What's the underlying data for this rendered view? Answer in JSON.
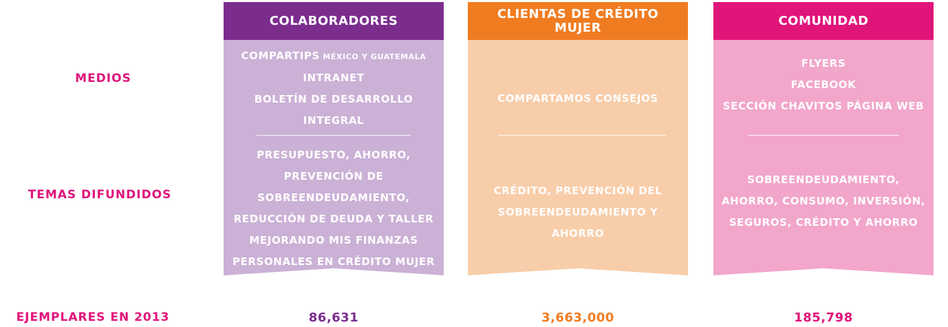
{
  "rows": {
    "medios": "MEDIOS",
    "temas": "TEMAS DIFUNDIDOS",
    "ejemplares": "EJEMPLARES EN 2013"
  },
  "columns": [
    {
      "header": "COLABORADORES",
      "medios": [
        {
          "main": "COMPARTIPS",
          "small": " MÉXICO Y GUATEMALA"
        },
        {
          "main": "INTRANET"
        },
        {
          "main": "BOLETÍN DE DESARROLLO"
        },
        {
          "main": "INTEGRAL"
        }
      ],
      "temas": [
        "PRESUPUESTO, AHORRO,",
        "PREVENCIÓN DE",
        "SOBREENDEUDAMIENTO,",
        "REDUCCIÓN DE DEUDA Y TALLER",
        "MEJORANDO MIS FINANZAS",
        "PERSONALES EN CRÉDITO MUJER"
      ],
      "count": "86,631",
      "colors": {
        "header": "#7b2d8e",
        "body": "#cbb1d6",
        "count": "#7b2d8e"
      }
    },
    {
      "header": "CLIENTAS DE CRÉDITO MUJER",
      "medios": [
        {
          "main": "COMPARTAMOS CONSEJOS"
        }
      ],
      "temas": [
        "CRÉDITO, PREVENCIÓN DEL",
        "SOBREENDEUDAMIENTO Y",
        "AHORRO"
      ],
      "count": "3,663,000",
      "colors": {
        "header": "#f07c22",
        "body": "#f8cda9",
        "count": "#f07c22"
      }
    },
    {
      "header": "COMUNIDAD",
      "medios": [
        {
          "main": "FLYERS"
        },
        {
          "main": "FACEBOOK"
        },
        {
          "main": "SECCIÓN CHAVITOS PÁGINA WEB"
        }
      ],
      "temas": [
        "SOBREENDEUDAMIENTO,",
        "AHORRO, CONSUMO, INVERSIÓN,",
        "SEGUROS, CRÉDITO Y AHORRO"
      ],
      "count": "185,798",
      "colors": {
        "header": "#e0157a",
        "body": "#f2a6cb",
        "count": "#e0157a"
      }
    }
  ]
}
